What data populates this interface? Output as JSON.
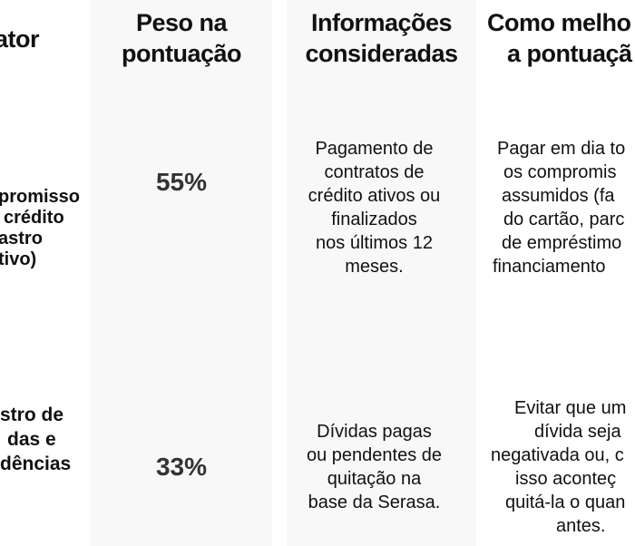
{
  "headers": {
    "factor": "ator",
    "weight": [
      "Peso na",
      "pontuação"
    ],
    "info": [
      "Informações",
      "consideradas"
    ],
    "improve": [
      "Como melho",
      "a pontuaçã"
    ]
  },
  "rows": [
    {
      "factor": [
        "promisso",
        "crédito",
        "astro",
        "tivo)"
      ],
      "weight": "55%",
      "info": [
        "Pagamento de",
        "contratos de",
        "crédito ativos ou",
        "finalizados",
        "nos últimos 12",
        "meses."
      ],
      "improve": [
        "Pagar em dia to",
        "os compromis",
        "assumidos (fa",
        "do cartão, parc",
        "de empréstimo",
        "financiamento"
      ]
    },
    {
      "factor": [
        "stro de",
        "das e",
        "dências"
      ],
      "weight": "33%",
      "info": [
        "Dívidas pagas",
        "ou pendentes de",
        "quitação na",
        "base da Serasa."
      ],
      "improve": [
        "Evitar que um",
        "dívida seja",
        "negativada ou, c",
        "isso aconteç",
        "quitá-la o quan",
        "antes."
      ]
    }
  ]
}
